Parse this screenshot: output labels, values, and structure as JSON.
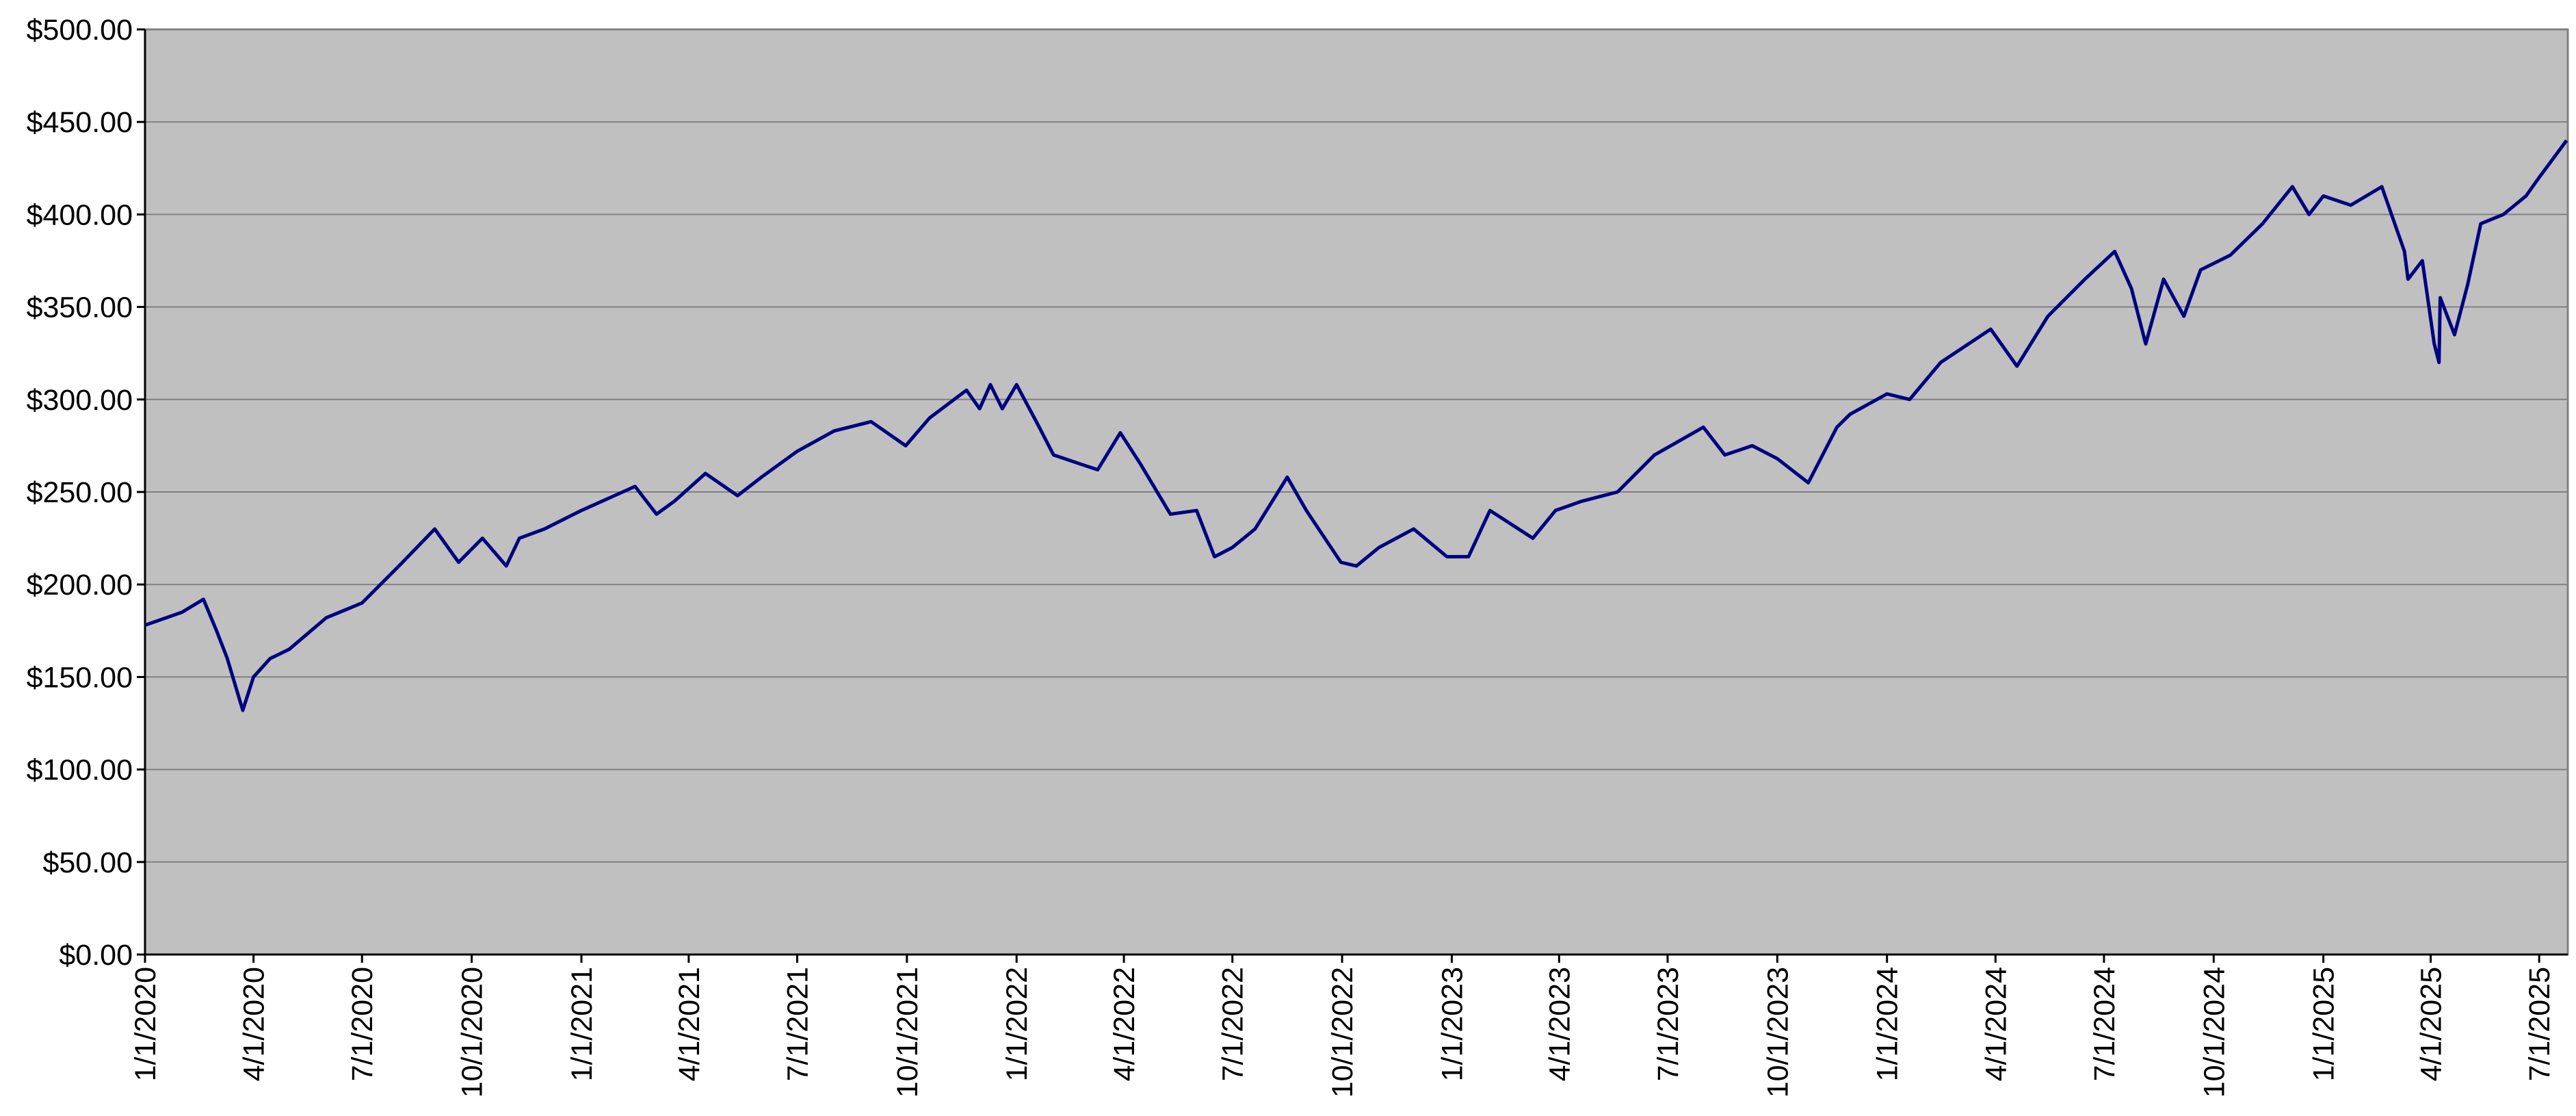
{
  "chart_data": {
    "type": "line",
    "x": [
      "1/1/2020",
      "2/1/2020",
      "2/19/2020",
      "3/1/2020",
      "3/10/2020",
      "3/23/2020",
      "4/1/2020",
      "4/15/2020",
      "5/1/2020",
      "6/1/2020",
      "7/1/2020",
      "8/1/2020",
      "8/31/2020",
      "9/20/2020",
      "10/10/2020",
      "10/30/2020",
      "11/10/2020",
      "12/1/2020",
      "1/1/2021",
      "2/15/2021",
      "3/5/2021",
      "3/20/2021",
      "4/15/2021",
      "5/12/2021",
      "6/1/2021",
      "7/1/2021",
      "8/1/2021",
      "9/1/2021",
      "9/30/2021",
      "10/20/2021",
      "11/20/2021",
      "12/1/2021",
      "12/10/2021",
      "12/20/2021",
      "1/1/2022",
      "1/20/2022",
      "2/1/2022",
      "2/24/2022",
      "3/10/2022",
      "3/29/2022",
      "4/15/2022",
      "5/10/2022",
      "6/1/2022",
      "6/16/2022",
      "7/1/2022",
      "7/20/2022",
      "8/16/2022",
      "9/1/2022",
      "9/30/2022",
      "10/13/2022",
      "11/1/2022",
      "11/30/2022",
      "12/28/2022",
      "1/15/2023",
      "2/2/2023",
      "3/10/2023",
      "3/29/2023",
      "4/20/2023",
      "5/20/2023",
      "6/20/2023",
      "7/31/2023",
      "8/18/2023",
      "9/10/2023",
      "10/1/2023",
      "10/27/2023",
      "11/20/2023",
      "12/1/2023",
      "1/1/2024",
      "1/20/2024",
      "2/15/2024",
      "3/28/2024",
      "4/19/2024",
      "5/15/2024",
      "6/15/2024",
      "7/10/2024",
      "7/24/2024",
      "8/5/2024",
      "8/20/2024",
      "9/6/2024",
      "9/20/2024",
      "10/15/2024",
      "11/11/2024",
      "12/6/2024",
      "12/20/2024",
      "1/1/2025",
      "1/24/2025",
      "2/19/2025",
      "3/10/2025",
      "3/13/2025",
      "3/25/2025",
      "4/4/2025",
      "4/8/2025",
      "4/9/2025",
      "4/21/2025",
      "5/2/2025",
      "5/13/2025",
      "6/1/2025",
      "6/20/2025",
      "7/1/2025",
      "7/24/2025"
    ],
    "series": [
      {
        "color": "#000080",
        "values": [
          178,
          185,
          192,
          175,
          160,
          132,
          150,
          160,
          165,
          182,
          190,
          210,
          230,
          212,
          225,
          210,
          225,
          230,
          240,
          253,
          238,
          245,
          260,
          248,
          258,
          272,
          283,
          288,
          275,
          290,
          305,
          295,
          308,
          295,
          308,
          285,
          270,
          265,
          262,
          282,
          265,
          238,
          240,
          215,
          220,
          230,
          258,
          240,
          212,
          210,
          220,
          230,
          215,
          215,
          240,
          225,
          240,
          245,
          250,
          270,
          285,
          270,
          275,
          268,
          255,
          285,
          292,
          303,
          300,
          320,
          338,
          318,
          345,
          365,
          380,
          360,
          330,
          365,
          345,
          370,
          378,
          395,
          415,
          400,
          410,
          405,
          415,
          380,
          365,
          375,
          330,
          320,
          355,
          335,
          362,
          395,
          400,
          410,
          420,
          440
        ]
      }
    ],
    "xlim": [
      "1/1/2020",
      "7/25/2025"
    ],
    "xticks": [
      "1/1/2020",
      "4/1/2020",
      "7/1/2020",
      "10/1/2020",
      "1/1/2021",
      "4/1/2021",
      "7/1/2021",
      "10/1/2021",
      "1/1/2022",
      "4/1/2022",
      "7/1/2022",
      "10/1/2022",
      "1/1/2023",
      "4/1/2023",
      "7/1/2023",
      "10/1/2023",
      "1/1/2024",
      "4/1/2024",
      "7/1/2024",
      "10/1/2024",
      "1/1/2025",
      "4/1/2025",
      "7/1/2025"
    ],
    "ylim": [
      0,
      500
    ],
    "yticks": [
      {
        "value": 0,
        "label": "$0.00"
      },
      {
        "value": 50,
        "label": "$50.00"
      },
      {
        "value": 100,
        "label": "$100.00"
      },
      {
        "value": 150,
        "label": "$150.00"
      },
      {
        "value": 200,
        "label": "$200.00"
      },
      {
        "value": 250,
        "label": "$250.00"
      },
      {
        "value": 300,
        "label": "$300.00"
      },
      {
        "value": 350,
        "label": "$350.00"
      },
      {
        "value": 400,
        "label": "$400.00"
      },
      {
        "value": 450,
        "label": "$450.00"
      },
      {
        "value": 500,
        "label": "$500.00"
      }
    ],
    "grid": true,
    "background": "#c0c0c0"
  }
}
